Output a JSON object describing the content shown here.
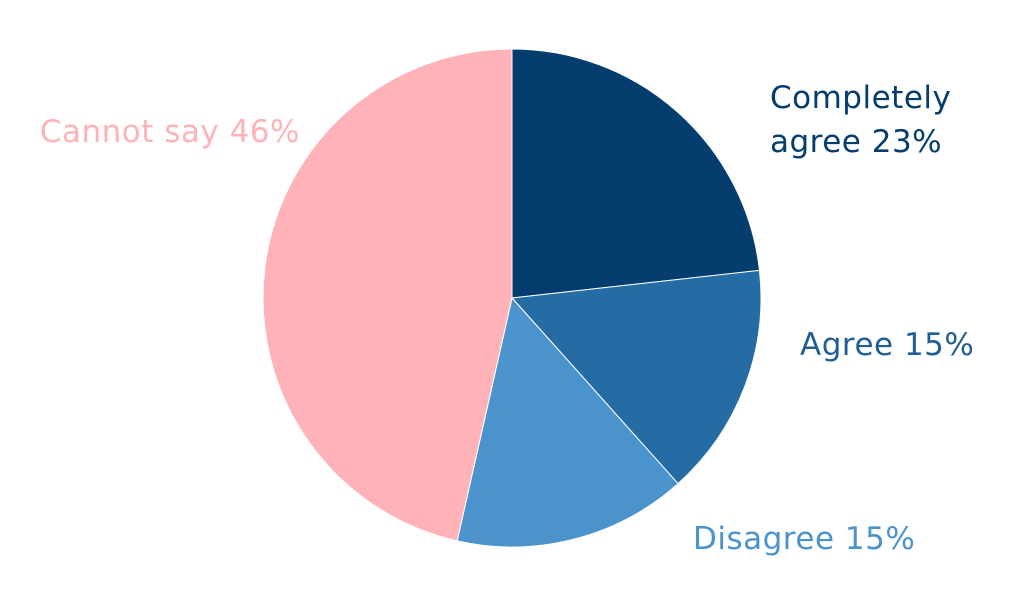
{
  "chart_data": {
    "type": "pie",
    "title": "",
    "start_angle_deg": 0,
    "direction": "clockwise",
    "slices": [
      {
        "name": "Completely agree",
        "value": 23,
        "color": "#043d6e",
        "label_lines": [
          "Completely",
          "agree 23%"
        ]
      },
      {
        "name": "Agree",
        "value": 15,
        "color": "#256ba4",
        "label_lines": [
          "Agree 15%"
        ]
      },
      {
        "name": "Disagree",
        "value": 15,
        "color": "#4b93cc",
        "label_lines": [
          "Disagree 15%"
        ]
      },
      {
        "name": "Cannot say",
        "value": 46,
        "color": "#ffb3b8",
        "label_lines": [
          "Cannot say 46%"
        ]
      }
    ],
    "label_colors": [
      "#043d6e",
      "#1f5f96",
      "#4b93cc",
      "#ffb3b8"
    ],
    "legend": "none"
  }
}
